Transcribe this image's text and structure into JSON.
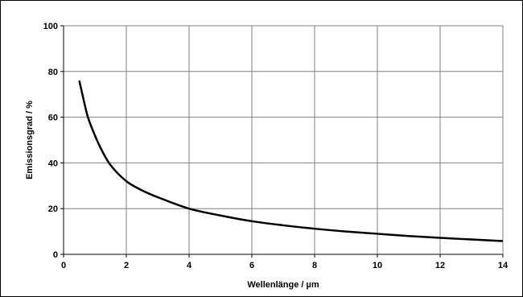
{
  "chart_data": {
    "type": "line",
    "title": "",
    "xlabel": "Wellenlänge / µm",
    "ylabel": "Emissionsgrad / %",
    "xlim": [
      0,
      14
    ],
    "ylim": [
      0,
      100
    ],
    "grid": true,
    "xticks": [
      "0",
      "2",
      "4",
      "6",
      "8",
      "10",
      "12",
      "14"
    ],
    "yticks": [
      "0",
      "20",
      "40",
      "60",
      "80",
      "100"
    ],
    "series": [
      {
        "color": "#000000",
        "x": [
          0.5,
          0.6,
          0.7,
          0.8,
          1.0,
          1.2,
          1.5,
          2.0,
          2.5,
          3.0,
          4.0,
          5.0,
          6.0,
          7.0,
          8.0,
          9.0,
          10.0,
          11.0,
          12.0,
          13.0,
          14.0
        ],
        "y": [
          76,
          70,
          64,
          59,
          52,
          46,
          39,
          32,
          28,
          25,
          20,
          17,
          14.5,
          12.7,
          11.2,
          10,
          9,
          8,
          7.2,
          6.5,
          5.8
        ]
      }
    ]
  }
}
